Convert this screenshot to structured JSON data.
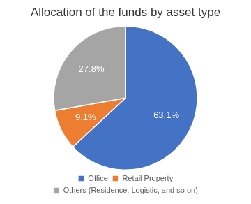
{
  "chart_data": {
    "type": "pie",
    "title": "Allocation of the funds by asset type",
    "categories": [
      "Office",
      "Retail Property",
      "Others (Residence, Logistic, and so on)"
    ],
    "values": [
      63.1,
      9.1,
      27.8
    ],
    "value_labels": [
      "63.1%",
      "9.1%",
      "27.8%"
    ],
    "colors": [
      "#4472c4",
      "#ed7d31",
      "#a5a5a5"
    ],
    "legend": "bottom",
    "data_labels": true
  }
}
